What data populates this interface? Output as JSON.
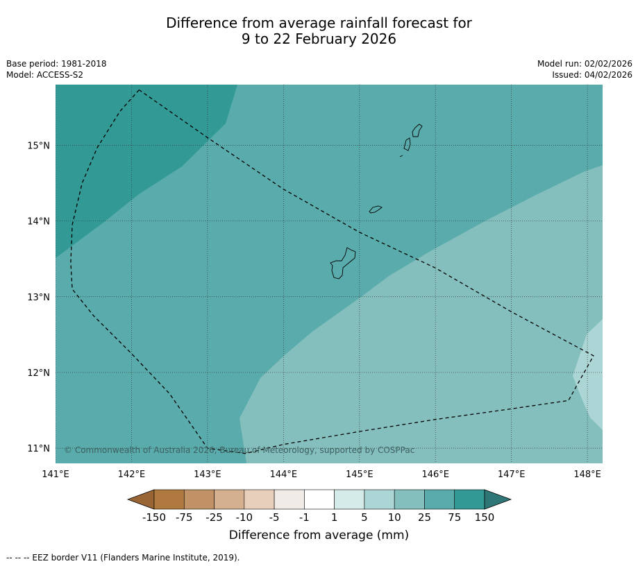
{
  "header": {
    "title_line1": "Difference from average rainfall forecast for",
    "title_line2": "9 to 22 February 2026",
    "base_period": "Base period: 1981-2018",
    "model": "Model: ACCESS-S2",
    "model_run": "Model run: 02/02/2026",
    "issued": "Issued: 04/02/2026"
  },
  "map": {
    "extent": {
      "lon_min": 141.0,
      "lon_max": 148.2,
      "lat_min": 10.8,
      "lat_max": 15.8
    },
    "lat_ticks": [
      15,
      14,
      13,
      12,
      11
    ],
    "lat_labels": [
      "15°N",
      "14°N",
      "13°N",
      "12°N",
      "11°N"
    ],
    "lon_ticks": [
      141,
      142,
      143,
      144,
      145,
      146,
      147,
      148
    ],
    "lon_labels": [
      "141°E",
      "142°E",
      "143°E",
      "144°E",
      "145°E",
      "146°E",
      "147°E",
      "148°E"
    ],
    "gridlines": true,
    "copyright": "© Commonwealth of Australia 2026, Bureau of Meteorology, supported by COSPPac",
    "colors": {
      "band_75_150": "#329994",
      "band_25_75": "#5aabab",
      "band_10_25": "#84bfbd",
      "band_5_10": "#acd6d5"
    },
    "eez_border": [
      [
        142.1,
        15.73
      ],
      [
        141.85,
        15.45
      ],
      [
        141.55,
        14.97
      ],
      [
        141.35,
        14.5
      ],
      [
        141.22,
        13.95
      ],
      [
        141.2,
        13.45
      ],
      [
        141.22,
        13.1
      ],
      [
        141.5,
        12.75
      ],
      [
        142.0,
        12.25
      ],
      [
        142.5,
        11.72
      ],
      [
        143.0,
        11.0
      ],
      [
        143.5,
        10.93
      ],
      [
        144.0,
        11.05
      ],
      [
        145.0,
        11.22
      ],
      [
        146.0,
        11.38
      ],
      [
        147.0,
        11.52
      ],
      [
        147.75,
        11.63
      ],
      [
        148.08,
        12.22
      ],
      [
        147.0,
        12.8
      ],
      [
        146.0,
        13.38
      ],
      [
        145.0,
        13.85
      ],
      [
        144.0,
        14.42
      ],
      [
        143.0,
        15.1
      ],
      [
        142.1,
        15.73
      ]
    ]
  },
  "colorbar": {
    "labels": [
      "-150",
      "-75",
      "-25",
      "-10",
      "-5",
      "-1",
      "1",
      "5",
      "10",
      "25",
      "75",
      "150"
    ],
    "colors": [
      "#9a6535",
      "#b07940",
      "#c19266",
      "#d5b090",
      "#e8cfbc",
      "#f0ebe7",
      "#ffffff",
      "#d5ebe9",
      "#acd6d5",
      "#84bfbd",
      "#5aabab",
      "#329994",
      "#2f7777"
    ],
    "title": "Difference from average (mm)"
  },
  "footnote": "--  --  -- EEZ border V11 (Flanders Marine Institute, 2019)."
}
